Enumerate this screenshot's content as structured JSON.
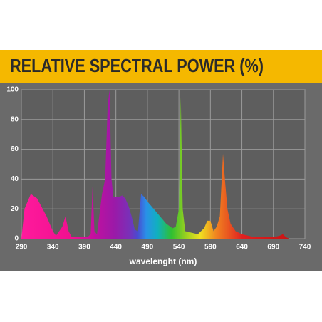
{
  "chart_data": {
    "type": "area",
    "title": "RELATIVE SPECTRAL POWER (%)",
    "x_label": "wavelenght (nm)",
    "x": [
      290,
      295,
      305,
      315,
      330,
      340,
      345,
      355,
      360,
      365,
      370,
      395,
      400,
      403,
      406,
      410,
      418,
      423,
      427,
      430,
      433,
      436,
      445,
      450,
      455,
      460,
      465,
      470,
      475,
      480,
      485,
      490,
      500,
      510,
      520,
      530,
      535,
      540,
      543,
      546,
      550,
      560,
      570,
      580,
      585,
      590,
      595,
      600,
      605,
      610,
      613,
      617,
      622,
      630,
      640,
      650,
      660,
      670,
      690,
      700,
      705,
      710,
      715
    ],
    "values": [
      0,
      20,
      30,
      27,
      15,
      5,
      2,
      8,
      15,
      5,
      1,
      1,
      3,
      35,
      5,
      3,
      30,
      40,
      90,
      100,
      40,
      28,
      28,
      29,
      27,
      22,
      15,
      6,
      5,
      30,
      28,
      25,
      20,
      15,
      10,
      7,
      8,
      20,
      95,
      20,
      5,
      4,
      3,
      7,
      12,
      12,
      5,
      8,
      15,
      57,
      40,
      20,
      10,
      5,
      3,
      2,
      1,
      1,
      1,
      2,
      3,
      1,
      0
    ],
    "xlim": [
      290,
      740
    ],
    "ylim": [
      0,
      100
    ],
    "xticks": [
      290,
      340,
      390,
      440,
      490,
      540,
      590,
      640,
      690,
      740
    ],
    "yticks": [
      0,
      20,
      40,
      60,
      80,
      100
    ],
    "grid": true
  }
}
